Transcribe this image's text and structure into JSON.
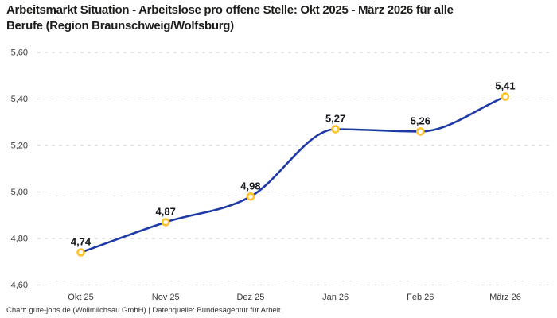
{
  "header": {
    "title": "Arbeitsmarkt Situation - Arbeitslose pro offene Stelle: Okt 2025 - März 2026 für alle\nBerufe (Region Braunschweig/Wolfsburg)"
  },
  "footer": {
    "credit": "Chart: gute-jobs.de (Wollmilchsau GmbH) | Datenquelle: Bundesagentur für Arbeit"
  },
  "chart_data": {
    "type": "line",
    "title": "Arbeitsmarkt Situation - Arbeitslose pro offene Stelle: Okt 2025 - März 2026 für alle Berufe (Region Braunschweig/Wolfsburg)",
    "categories": [
      "Okt 25",
      "Nov 25",
      "Dez 25",
      "Jan 26",
      "Feb 26",
      "März 26"
    ],
    "series": [
      {
        "name": "Arbeitslose pro offene Stelle",
        "values": [
          4.74,
          4.87,
          4.98,
          5.27,
          5.26,
          5.41
        ]
      }
    ],
    "point_labels": [
      "4,74",
      "4,87",
      "4,98",
      "5,27",
      "5,26",
      "5,41"
    ],
    "ytick_labels": [
      "5,60",
      "5,40",
      "5,20",
      "5,00",
      "4,80",
      "4,60"
    ],
    "ylim": [
      4.6,
      5.6
    ],
    "ytick_step": 0.2,
    "xlabel": "",
    "ylabel": "",
    "grid": "horizontal-dashed",
    "legend_position": "none",
    "line_style": "smooth-monotone",
    "colors": {
      "line": "#1e3aa6",
      "marker_ring": "#ffc32b",
      "marker_fill": "#ffffff",
      "gridline": "#c9c9c9",
      "title_text": "#1d1d1b",
      "axis_text": "#3a3a3a",
      "label_text": "#14171c",
      "background": "#ffffff"
    }
  }
}
